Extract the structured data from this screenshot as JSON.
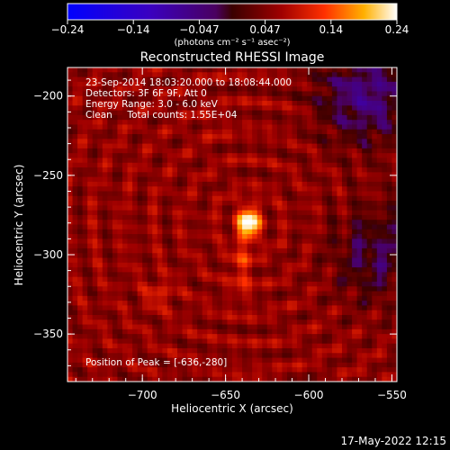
{
  "chart_data": {
    "type": "heatmap",
    "title": "Reconstructed RHESSI Image",
    "xlabel": "Heliocentric X (arcsec)",
    "ylabel": "Heliocentric Y (arcsec)",
    "xlim": [
      -745,
      -547
    ],
    "ylim": [
      -380,
      -182
    ],
    "xticks": [
      -700,
      -650,
      -600,
      -550
    ],
    "yticks": [
      -200,
      -250,
      -300,
      -350
    ],
    "xtick_labels": [
      "−700",
      "−650",
      "−600",
      "−550"
    ],
    "ytick_labels": [
      "−200",
      "−250",
      "−300",
      "−350"
    ],
    "colorbar": {
      "range": [
        -0.24,
        0.24
      ],
      "tick_labels": [
        "−0.24",
        "−0.14",
        "−0.047",
        "0.047",
        "0.14",
        "0.24"
      ],
      "unit_label": "(photons cm⁻² s⁻¹ asec⁻²)",
      "colormap": "blue-purple-red-yellow-white"
    },
    "info_lines": [
      "23-Sep-2014 18:03:20.000 to 18:08:44.000",
      "Detectors: 3F 6F 9F, Att 0",
      "Energy Range: 3.0 - 6.0 keV",
      "Clean     Total counts: 1.55E+04"
    ],
    "peak_label": "Position of Peak = [-636,-280]",
    "peak": {
      "x": -636,
      "y": -280,
      "value": 0.24
    },
    "secondary_sources": [
      {
        "x": -690,
        "y": -325,
        "value": 0.11
      },
      {
        "x": -658,
        "y": -218,
        "value": 0.08
      },
      {
        "x": -605,
        "y": -212,
        "value": 0.07
      }
    ],
    "background_level": 0.06,
    "negative_region": {
      "x": -565,
      "y": -200,
      "value": -0.05
    }
  },
  "footer": {
    "timestamp": "17-May-2022 12:15"
  }
}
